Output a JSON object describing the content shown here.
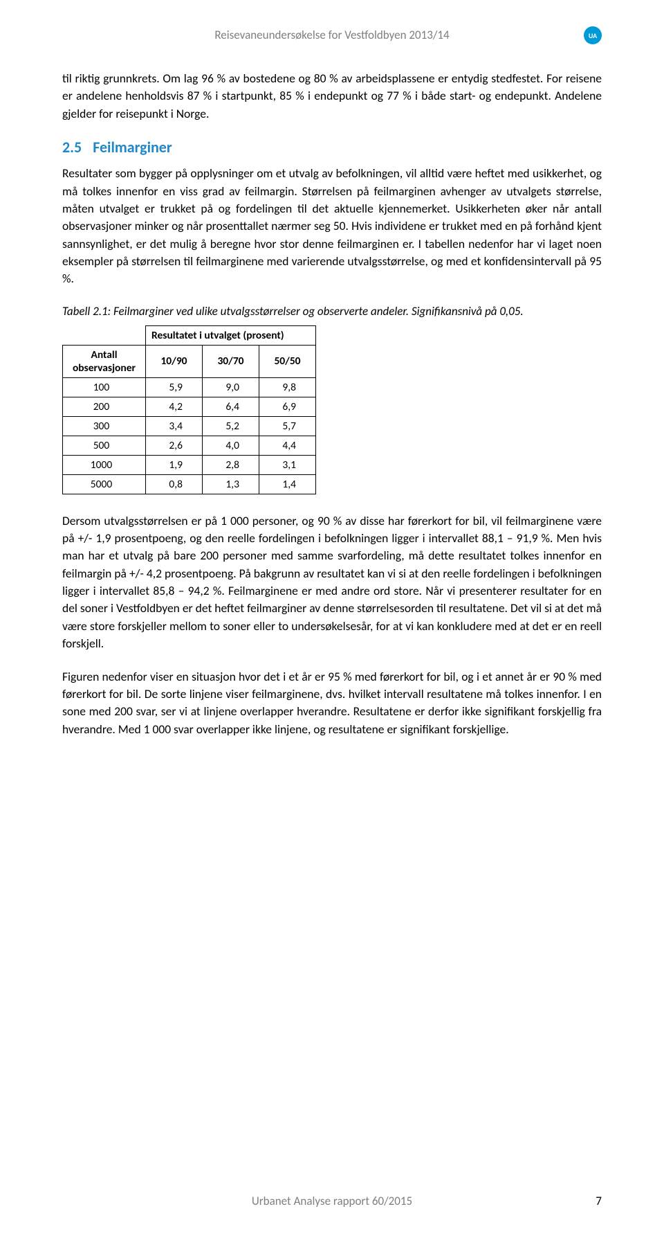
{
  "header": {
    "title": "Reisevaneundersøkelse for Vestfoldbyen 2013/14",
    "badge": "UA"
  },
  "paragraphs": {
    "p1": "til riktig grunnkrets. Om lag 96 % av bostedene og 80 % av arbeidsplassene er entydig stedfestet. For reisene er andelene henholdsvis 87 % i startpunkt, 85 % i endepunkt og 77 % i både start- og endepunkt. Andelene gjelder for reisepunkt i Norge.",
    "section_num": "2.5",
    "section_title": "Feilmarginer",
    "p2": "Resultater som bygger på opplysninger om et utvalg av befolkningen, vil alltid være heftet med usikkerhet, og må tolkes innenfor en viss grad av feilmargin. Størrelsen på feilmarginen avhenger av utvalgets størrelse, måten utvalget er trukket på og fordelingen til det aktuelle kjennemerket. Usikkerheten øker når antall observasjoner minker og når prosenttallet nærmer seg 50. Hvis individene er trukket med en på forhånd kjent sannsynlighet, er det mulig å beregne hvor stor denne feilmarginen er. I tabellen nedenfor har vi laget noen eksempler på størrelsen til feilmarginene med varierende utvalgsstørrelse, og med et konfidensintervall på 95 %.",
    "caption": "Tabell 2.1: Feilmarginer ved ulike utvalgsstørrelser og observerte andeler. Signifikansnivå på 0,05.",
    "p3": "Dersom utvalgsstørrelsen er på 1 000 personer, og 90 % av disse har førerkort for bil, vil feilmarginene være på +/- 1,9 prosentpoeng, og den reelle fordelingen i befolkningen ligger i intervallet 88,1 – 91,9 %. Men hvis man har et utvalg på bare 200 personer med samme svarfordeling, må dette resultatet tolkes innenfor en feilmargin på +/- 4,2 prosentpoeng. På bakgrunn av resultatet kan vi si at den reelle fordelingen i befolkningen ligger i intervallet 85,8 – 94,2 %. Feilmarginene er med andre ord store. Når vi presenterer resultater for en del soner i Vestfoldbyen er det heftet feilmarginer av denne størrelsesorden til resultatene. Det vil si at det må være store forskjeller mellom to soner eller to undersøkelsesår, for at vi kan konkludere med at det er en reell forskjell.",
    "p4": "Figuren nedenfor viser en situasjon hvor det i et år er 95 % med førerkort for bil, og i et annet år er 90 % med førerkort for bil. De sorte linjene viser feilmarginene, dvs. hvilket intervall resultatene må tolkes innenfor. I en sone med 200 svar, ser vi at linjene overlapper hverandre. Resultatene er derfor ikke signifikant forskjellig fra hverandre. Med 1 000 svar overlapper ikke linjene, og resultatene er signifikant forskjellige."
  },
  "table": {
    "group_header": "Resultatet i utvalget (prosent)",
    "row_header": "Antall observasjoner",
    "columns": [
      "10/90",
      "30/70",
      "50/50"
    ],
    "rows": [
      {
        "obs": "100",
        "v": [
          "5,9",
          "9,0",
          "9,8"
        ]
      },
      {
        "obs": "200",
        "v": [
          "4,2",
          "6,4",
          "6,9"
        ]
      },
      {
        "obs": "300",
        "v": [
          "3,4",
          "5,2",
          "5,7"
        ]
      },
      {
        "obs": "500",
        "v": [
          "2,6",
          "4,0",
          "4,4"
        ]
      },
      {
        "obs": "1000",
        "v": [
          "1,9",
          "2,8",
          "3,1"
        ]
      },
      {
        "obs": "5000",
        "v": [
          "0,8",
          "1,3",
          "1,4"
        ]
      }
    ]
  },
  "footer": {
    "text": "Urbanet Analyse rapport 60/2015",
    "page": "7"
  },
  "colors": {
    "heading": "#1f87c8",
    "muted": "#7f7f7f",
    "badge_bg": "#0099d8",
    "text": "#000000"
  }
}
